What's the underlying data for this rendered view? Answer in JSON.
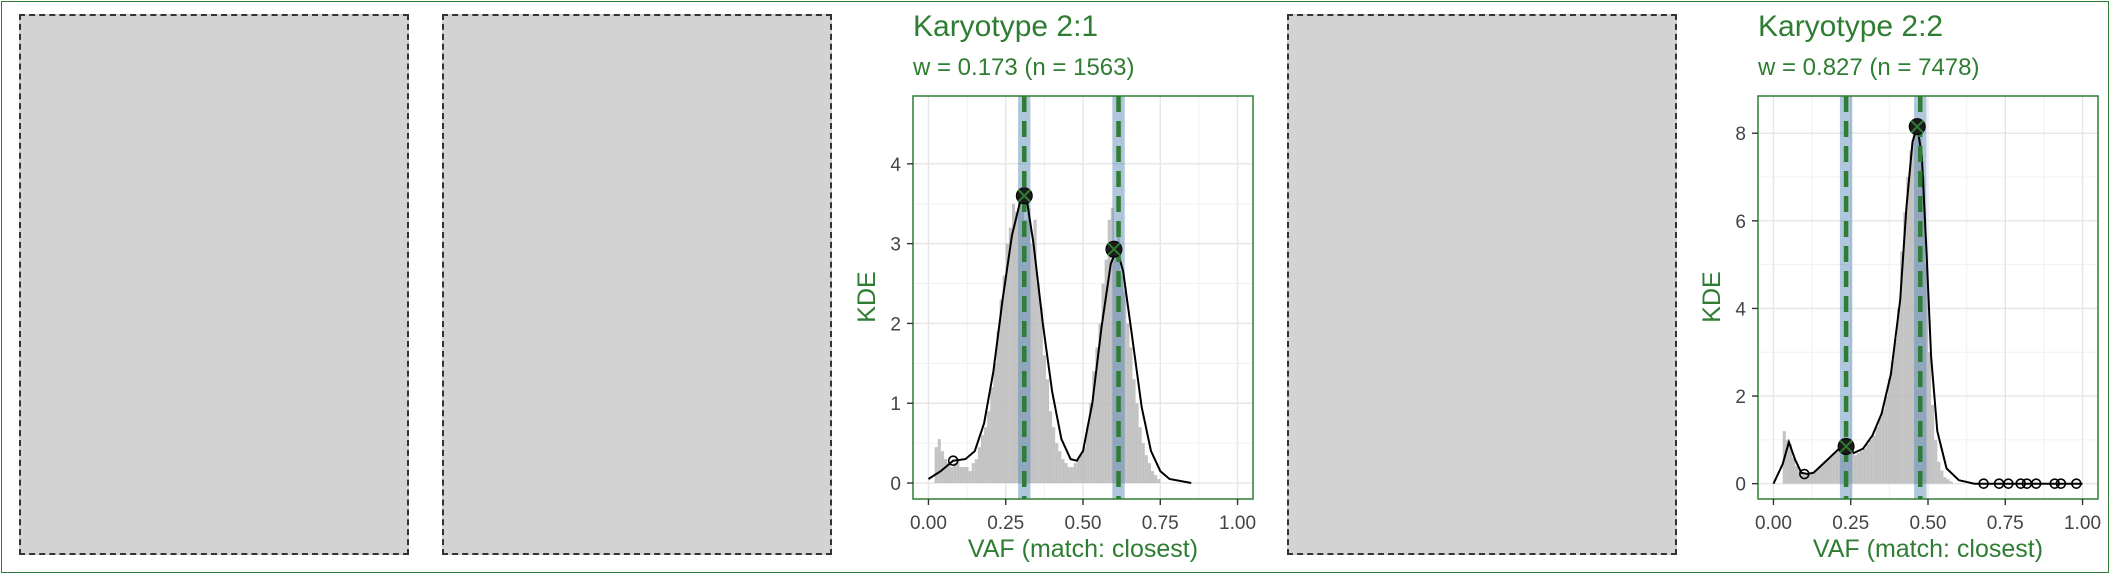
{
  "colors": {
    "accent": "#2e7d32",
    "placeholder_fill": "#d3d3d3",
    "placeholder_border": "#333333",
    "histogram": "#b8b8b8",
    "density_line": "#000000",
    "band": "#4f80b4",
    "peak_line": "#2e7d32",
    "grid": "#e6e6e6"
  },
  "placeholders": [
    {
      "name": "empty-panel-1"
    },
    {
      "name": "empty-panel-2"
    },
    {
      "name": "empty-panel-4"
    }
  ],
  "chart_data": [
    {
      "type": "histogram+density",
      "title": "Karyotype 2:1",
      "subtitle": "w = 0.173 (n = 1563)",
      "xlabel": "VAF (match: closest)",
      "ylabel": "KDE",
      "xlim": [
        -0.05,
        1.05
      ],
      "ylim": [
        -0.2,
        4.85
      ],
      "x_ticks": [
        0.0,
        0.25,
        0.5,
        0.75,
        1.0
      ],
      "x_tick_labels": [
        "0.00",
        "0.25",
        "0.50",
        "0.75",
        "1.00"
      ],
      "y_ticks": [
        0,
        1,
        2,
        3,
        4
      ],
      "y_tick_labels": [
        "0",
        "1",
        "2",
        "3",
        "4"
      ],
      "grid": true,
      "peak_bands": [
        [
          0.29,
          0.33
        ],
        [
          0.595,
          0.635
        ]
      ],
      "peak_lines": [
        0.31,
        0.615
      ],
      "peaks": [
        {
          "x": 0.31,
          "y": 3.6
        },
        {
          "x": 0.6,
          "y": 2.93
        }
      ],
      "minor_points": [
        {
          "x": 0.08,
          "y": 0.28
        }
      ],
      "density": [
        [
          0.0,
          0.05
        ],
        [
          0.04,
          0.15
        ],
        [
          0.08,
          0.28
        ],
        [
          0.12,
          0.3
        ],
        [
          0.15,
          0.4
        ],
        [
          0.18,
          0.75
        ],
        [
          0.21,
          1.4
        ],
        [
          0.24,
          2.3
        ],
        [
          0.27,
          3.1
        ],
        [
          0.3,
          3.58
        ],
        [
          0.32,
          3.5
        ],
        [
          0.34,
          3.0
        ],
        [
          0.37,
          2.0
        ],
        [
          0.4,
          1.15
        ],
        [
          0.43,
          0.55
        ],
        [
          0.46,
          0.3
        ],
        [
          0.48,
          0.28
        ],
        [
          0.5,
          0.4
        ],
        [
          0.53,
          1.0
        ],
        [
          0.56,
          1.95
        ],
        [
          0.59,
          2.75
        ],
        [
          0.61,
          2.93
        ],
        [
          0.63,
          2.65
        ],
        [
          0.66,
          1.8
        ],
        [
          0.69,
          0.95
        ],
        [
          0.72,
          0.4
        ],
        [
          0.75,
          0.15
        ],
        [
          0.78,
          0.05
        ],
        [
          0.85,
          0.0
        ]
      ],
      "histogram": [
        [
          0.0,
          0.0
        ],
        [
          0.025,
          0.45
        ],
        [
          0.035,
          0.55
        ],
        [
          0.045,
          0.4
        ],
        [
          0.055,
          0.3
        ],
        [
          0.065,
          0.25
        ],
        [
          0.075,
          0.2
        ],
        [
          0.085,
          0.25
        ],
        [
          0.095,
          0.3
        ],
        [
          0.105,
          0.2
        ],
        [
          0.115,
          0.2
        ],
        [
          0.125,
          0.2
        ],
        [
          0.135,
          0.15
        ],
        [
          0.145,
          0.25
        ],
        [
          0.155,
          0.3
        ],
        [
          0.165,
          0.45
        ],
        [
          0.175,
          0.6
        ],
        [
          0.185,
          0.7
        ],
        [
          0.195,
          0.9
        ],
        [
          0.205,
          1.2
        ],
        [
          0.215,
          1.5
        ],
        [
          0.225,
          1.9
        ],
        [
          0.235,
          2.3
        ],
        [
          0.245,
          2.6
        ],
        [
          0.255,
          3.0
        ],
        [
          0.265,
          3.2
        ],
        [
          0.275,
          3.5
        ],
        [
          0.285,
          3.4
        ],
        [
          0.295,
          3.55
        ],
        [
          0.305,
          3.5
        ],
        [
          0.315,
          3.3
        ],
        [
          0.325,
          3.45
        ],
        [
          0.335,
          3.0
        ],
        [
          0.345,
          3.3
        ],
        [
          0.355,
          2.5
        ],
        [
          0.365,
          2.2
        ],
        [
          0.375,
          1.6
        ],
        [
          0.385,
          1.3
        ],
        [
          0.395,
          0.9
        ],
        [
          0.405,
          0.7
        ],
        [
          0.415,
          0.5
        ],
        [
          0.425,
          0.4
        ],
        [
          0.435,
          0.3
        ],
        [
          0.445,
          0.25
        ],
        [
          0.455,
          0.2
        ],
        [
          0.465,
          0.2
        ],
        [
          0.475,
          0.25
        ],
        [
          0.485,
          0.3
        ],
        [
          0.495,
          0.35
        ],
        [
          0.505,
          0.45
        ],
        [
          0.515,
          0.7
        ],
        [
          0.525,
          1.0
        ],
        [
          0.535,
          1.4
        ],
        [
          0.545,
          1.7
        ],
        [
          0.555,
          2.0
        ],
        [
          0.565,
          2.5
        ],
        [
          0.575,
          2.8
        ],
        [
          0.585,
          3.3
        ],
        [
          0.595,
          3.45
        ],
        [
          0.605,
          2.9
        ],
        [
          0.615,
          3.2
        ],
        [
          0.625,
          2.6
        ],
        [
          0.635,
          2.4
        ],
        [
          0.645,
          2.0
        ],
        [
          0.655,
          1.7
        ],
        [
          0.665,
          1.3
        ],
        [
          0.675,
          1.0
        ],
        [
          0.685,
          0.7
        ],
        [
          0.695,
          0.5
        ],
        [
          0.705,
          0.35
        ],
        [
          0.715,
          0.25
        ],
        [
          0.725,
          0.15
        ],
        [
          0.735,
          0.1
        ],
        [
          0.745,
          0.05
        ]
      ]
    },
    {
      "type": "histogram+density",
      "title": "Karyotype 2:2",
      "subtitle": "w = 0.827 (n = 7478)",
      "xlabel": "VAF (match: closest)",
      "ylabel": "KDE",
      "xlim": [
        -0.05,
        1.05
      ],
      "ylim": [
        -0.35,
        8.85
      ],
      "x_ticks": [
        0.0,
        0.25,
        0.5,
        0.75,
        1.0
      ],
      "x_tick_labels": [
        "0.00",
        "0.25",
        "0.50",
        "0.75",
        "1.00"
      ],
      "y_ticks": [
        0,
        2,
        4,
        6,
        8
      ],
      "y_tick_labels": [
        "0",
        "2",
        "4",
        "6",
        "8"
      ],
      "grid": true,
      "peak_bands": [
        [
          0.215,
          0.255
        ],
        [
          0.455,
          0.495
        ]
      ],
      "peak_lines": [
        0.235,
        0.475
      ],
      "peaks": [
        {
          "x": 0.235,
          "y": 0.85
        },
        {
          "x": 0.465,
          "y": 8.15
        }
      ],
      "minor_points": [
        {
          "x": 0.1,
          "y": 0.22
        },
        {
          "x": 0.68,
          "y": 0.0
        },
        {
          "x": 0.73,
          "y": 0.0
        },
        {
          "x": 0.76,
          "y": 0.0
        },
        {
          "x": 0.8,
          "y": 0.0
        },
        {
          "x": 0.82,
          "y": 0.0
        },
        {
          "x": 0.85,
          "y": 0.0
        },
        {
          "x": 0.91,
          "y": 0.0
        },
        {
          "x": 0.93,
          "y": 0.0
        },
        {
          "x": 0.98,
          "y": 0.0
        }
      ],
      "density": [
        [
          0.0,
          0.0
        ],
        [
          0.03,
          0.45
        ],
        [
          0.05,
          0.95
        ],
        [
          0.07,
          0.55
        ],
        [
          0.09,
          0.25
        ],
        [
          0.11,
          0.22
        ],
        [
          0.13,
          0.25
        ],
        [
          0.16,
          0.45
        ],
        [
          0.19,
          0.65
        ],
        [
          0.22,
          0.85
        ],
        [
          0.24,
          0.88
        ],
        [
          0.26,
          0.7
        ],
        [
          0.29,
          0.8
        ],
        [
          0.32,
          1.1
        ],
        [
          0.35,
          1.6
        ],
        [
          0.38,
          2.5
        ],
        [
          0.41,
          4.2
        ],
        [
          0.43,
          6.3
        ],
        [
          0.45,
          7.8
        ],
        [
          0.465,
          8.15
        ],
        [
          0.48,
          7.5
        ],
        [
          0.495,
          5.3
        ],
        [
          0.51,
          2.9
        ],
        [
          0.53,
          1.2
        ],
        [
          0.56,
          0.35
        ],
        [
          0.6,
          0.08
        ],
        [
          0.65,
          0.0
        ],
        [
          1.0,
          0.0
        ]
      ],
      "histogram": [
        [
          0.035,
          1.2
        ],
        [
          0.045,
          1.0
        ],
        [
          0.055,
          0.9
        ],
        [
          0.065,
          0.6
        ],
        [
          0.075,
          0.4
        ],
        [
          0.085,
          0.3
        ],
        [
          0.095,
          0.25
        ],
        [
          0.105,
          0.2
        ],
        [
          0.115,
          0.2
        ],
        [
          0.125,
          0.25
        ],
        [
          0.135,
          0.3
        ],
        [
          0.145,
          0.35
        ],
        [
          0.155,
          0.4
        ],
        [
          0.165,
          0.5
        ],
        [
          0.175,
          0.55
        ],
        [
          0.185,
          0.6
        ],
        [
          0.195,
          0.7
        ],
        [
          0.205,
          0.75
        ],
        [
          0.215,
          0.8
        ],
        [
          0.225,
          0.9
        ],
        [
          0.235,
          0.85
        ],
        [
          0.245,
          0.8
        ],
        [
          0.255,
          0.7
        ],
        [
          0.265,
          0.65
        ],
        [
          0.275,
          0.7
        ],
        [
          0.285,
          0.75
        ],
        [
          0.295,
          0.8
        ],
        [
          0.305,
          0.9
        ],
        [
          0.315,
          1.0
        ],
        [
          0.325,
          1.1
        ],
        [
          0.335,
          1.3
        ],
        [
          0.345,
          1.5
        ],
        [
          0.355,
          1.7
        ],
        [
          0.365,
          2.0
        ],
        [
          0.375,
          2.4
        ],
        [
          0.385,
          2.8
        ],
        [
          0.395,
          3.3
        ],
        [
          0.405,
          4.0
        ],
        [
          0.415,
          5.3
        ],
        [
          0.425,
          6.2
        ],
        [
          0.435,
          7.0
        ],
        [
          0.445,
          7.6
        ],
        [
          0.455,
          8.0
        ],
        [
          0.465,
          8.2
        ],
        [
          0.475,
          7.9
        ],
        [
          0.485,
          7.0
        ],
        [
          0.495,
          5.0
        ],
        [
          0.505,
          3.0
        ],
        [
          0.515,
          1.8
        ],
        [
          0.525,
          1.0
        ],
        [
          0.535,
          0.5
        ],
        [
          0.545,
          0.3
        ],
        [
          0.555,
          0.15
        ],
        [
          0.565,
          0.1
        ],
        [
          0.575,
          0.05
        ]
      ]
    }
  ]
}
